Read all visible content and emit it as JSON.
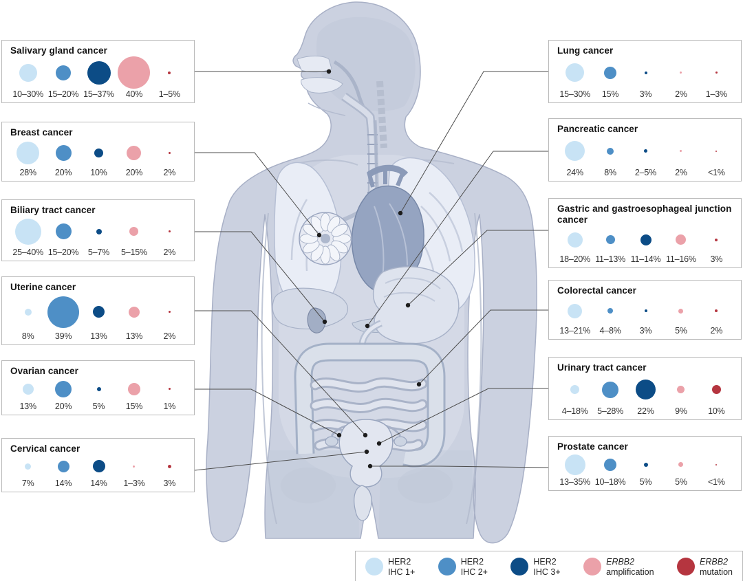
{
  "panels": [
    {
      "id": "salivary-gland-cancer",
      "side": "left",
      "title": "Salivary gland cancer",
      "bubbles": [
        {
          "label": "10–30%",
          "category": "HER2 IHC 1+",
          "color_key": "ihc1",
          "size": 26
        },
        {
          "label": "15–20%",
          "category": "HER2 IHC 2+",
          "color_key": "ihc2",
          "size": 22
        },
        {
          "label": "15–37%",
          "category": "HER2 IHC 3+",
          "color_key": "ihc3",
          "size": 34
        },
        {
          "label": "40%",
          "category": "ERBB2 amplification",
          "color_key": "amp",
          "size": 47
        },
        {
          "label": "1–5%",
          "category": "ERBB2 mutation",
          "color_key": "mut",
          "size": 4
        }
      ]
    },
    {
      "id": "breast-cancer",
      "side": "left",
      "title": "Breast cancer",
      "bubbles": [
        {
          "label": "28%",
          "category": "HER2 IHC 1+",
          "color_key": "ihc1",
          "size": 33
        },
        {
          "label": "20%",
          "category": "HER2 IHC 2+",
          "color_key": "ihc2",
          "size": 23
        },
        {
          "label": "10%",
          "category": "HER2 IHC 3+",
          "color_key": "ihc3",
          "size": 13
        },
        {
          "label": "20%",
          "category": "ERBB2 amplification",
          "color_key": "amp",
          "size": 21
        },
        {
          "label": "2%",
          "category": "ERBB2 mutation",
          "color_key": "mut",
          "size": 3
        }
      ]
    },
    {
      "id": "biliary-tract-cancer",
      "side": "left",
      "title": "Biliary tract cancer",
      "bubbles": [
        {
          "label": "25–40%",
          "category": "HER2 IHC 1+",
          "color_key": "ihc1",
          "size": 38
        },
        {
          "label": "15–20%",
          "category": "HER2 IHC 2+",
          "color_key": "ihc2",
          "size": 23
        },
        {
          "label": "5–7%",
          "category": "HER2 IHC 3+",
          "color_key": "ihc3",
          "size": 8
        },
        {
          "label": "5–15%",
          "category": "ERBB2 amplification",
          "color_key": "amp",
          "size": 13
        },
        {
          "label": "2%",
          "category": "ERBB2 mutation",
          "color_key": "mut",
          "size": 3
        }
      ]
    },
    {
      "id": "uterine-cancer",
      "side": "left",
      "title": "Uterine cancer",
      "bubbles": [
        {
          "label": "8%",
          "category": "HER2 IHC 1+",
          "color_key": "ihc1",
          "size": 10
        },
        {
          "label": "39%",
          "category": "HER2 IHC 2+",
          "color_key": "ihc2",
          "size": 46
        },
        {
          "label": "13%",
          "category": "HER2 IHC 3+",
          "color_key": "ihc3",
          "size": 17
        },
        {
          "label": "13%",
          "category": "ERBB2 amplification",
          "color_key": "amp",
          "size": 16
        },
        {
          "label": "2%",
          "category": "ERBB2 mutation",
          "color_key": "mut",
          "size": 3
        }
      ]
    },
    {
      "id": "ovarian-cancer",
      "side": "left",
      "title": "Ovarian cancer",
      "bubbles": [
        {
          "label": "13%",
          "category": "HER2 IHC 1+",
          "color_key": "ihc1",
          "size": 16
        },
        {
          "label": "20%",
          "category": "HER2 IHC 2+",
          "color_key": "ihc2",
          "size": 24
        },
        {
          "label": "5%",
          "category": "HER2 IHC 3+",
          "color_key": "ihc3",
          "size": 6
        },
        {
          "label": "15%",
          "category": "ERBB2 amplification",
          "color_key": "amp",
          "size": 18
        },
        {
          "label": "1%",
          "category": "ERBB2 mutation",
          "color_key": "mut",
          "size": 3
        }
      ]
    },
    {
      "id": "cervical-cancer",
      "side": "left",
      "title": "Cervical cancer",
      "bubbles": [
        {
          "label": "7%",
          "category": "HER2 IHC 1+",
          "color_key": "ihc1",
          "size": 9
        },
        {
          "label": "14%",
          "category": "HER2 IHC 2+",
          "color_key": "ihc2",
          "size": 17
        },
        {
          "label": "14%",
          "category": "HER2 IHC 3+",
          "color_key": "ihc3",
          "size": 18
        },
        {
          "label": "1–3%",
          "category": "ERBB2 amplification",
          "color_key": "amp",
          "size": 3
        },
        {
          "label": "3%",
          "category": "ERBB2 mutation",
          "color_key": "mut",
          "size": 5
        }
      ]
    },
    {
      "id": "lung-cancer",
      "side": "right",
      "title": "Lung cancer",
      "bubbles": [
        {
          "label": "15–30%",
          "category": "HER2 IHC 1+",
          "color_key": "ihc1",
          "size": 27
        },
        {
          "label": "15%",
          "category": "HER2 IHC 2+",
          "color_key": "ihc2",
          "size": 18
        },
        {
          "label": "3%",
          "category": "HER2 IHC 3+",
          "color_key": "ihc3",
          "size": 4
        },
        {
          "label": "2%",
          "category": "ERBB2 amplification",
          "color_key": "amp",
          "size": 3
        },
        {
          "label": "1–3%",
          "category": "ERBB2 mutation",
          "color_key": "mut",
          "size": 3
        }
      ]
    },
    {
      "id": "pancreatic-cancer",
      "side": "right",
      "title": "Pancreatic cancer",
      "bubbles": [
        {
          "label": "24%",
          "category": "HER2 IHC 1+",
          "color_key": "ihc1",
          "size": 29
        },
        {
          "label": "8%",
          "category": "HER2 IHC 2+",
          "color_key": "ihc2",
          "size": 10
        },
        {
          "label": "2–5%",
          "category": "HER2 IHC 3+",
          "color_key": "ihc3",
          "size": 5
        },
        {
          "label": "2%",
          "category": "ERBB2 amplification",
          "color_key": "amp",
          "size": 3
        },
        {
          "label": "<1%",
          "category": "ERBB2 mutation",
          "color_key": "mut",
          "size": 2
        }
      ]
    },
    {
      "id": "gastric-gej-cancer",
      "side": "right",
      "title": "Gastric and gastroesophageal junction cancer",
      "bubbles": [
        {
          "label": "18–20%",
          "category": "HER2 IHC 1+",
          "color_key": "ihc1",
          "size": 22
        },
        {
          "label": "11–13%",
          "category": "HER2 IHC 2+",
          "color_key": "ihc2",
          "size": 13
        },
        {
          "label": "11–14%",
          "category": "HER2 IHC 3+",
          "color_key": "ihc3",
          "size": 16
        },
        {
          "label": "11–16%",
          "category": "ERBB2 amplification",
          "color_key": "amp",
          "size": 15
        },
        {
          "label": "3%",
          "category": "ERBB2 mutation",
          "color_key": "mut",
          "size": 4
        }
      ]
    },
    {
      "id": "colorectal-cancer",
      "side": "right",
      "title": "Colorectal cancer",
      "bubbles": [
        {
          "label": "13–21%",
          "category": "HER2 IHC 1+",
          "color_key": "ihc1",
          "size": 21
        },
        {
          "label": "4–8%",
          "category": "HER2 IHC 2+",
          "color_key": "ihc2",
          "size": 8
        },
        {
          "label": "3%",
          "category": "HER2 IHC 3+",
          "color_key": "ihc3",
          "size": 4
        },
        {
          "label": "5%",
          "category": "ERBB2 amplification",
          "color_key": "amp",
          "size": 7
        },
        {
          "label": "2%",
          "category": "ERBB2 mutation",
          "color_key": "mut",
          "size": 4
        }
      ]
    },
    {
      "id": "urinary-tract-cancer",
      "side": "right",
      "title": "Urinary tract cancer",
      "bubbles": [
        {
          "label": "4–18%",
          "category": "HER2 IHC 1+",
          "color_key": "ihc1",
          "size": 13
        },
        {
          "label": "5–28%",
          "category": "HER2 IHC 2+",
          "color_key": "ihc2",
          "size": 24
        },
        {
          "label": "22%",
          "category": "HER2 IHC 3+",
          "color_key": "ihc3",
          "size": 29
        },
        {
          "label": "9%",
          "category": "ERBB2 amplification",
          "color_key": "amp",
          "size": 11
        },
        {
          "label": "10%",
          "category": "ERBB2 mutation",
          "color_key": "mut",
          "size": 13
        }
      ]
    },
    {
      "id": "prostate-cancer",
      "side": "right",
      "title": "Prostate cancer",
      "bubbles": [
        {
          "label": "13–35%",
          "category": "HER2 IHC 1+",
          "color_key": "ihc1",
          "size": 30
        },
        {
          "label": "10–18%",
          "category": "HER2 IHC 2+",
          "color_key": "ihc2",
          "size": 18
        },
        {
          "label": "5%",
          "category": "HER2 IHC 3+",
          "color_key": "ihc3",
          "size": 6
        },
        {
          "label": "5%",
          "category": "ERBB2 amplification",
          "color_key": "amp",
          "size": 7
        },
        {
          "label": "<1%",
          "category": "ERBB2 mutation",
          "color_key": "mut",
          "size": 2
        }
      ]
    }
  ],
  "legend": {
    "items": [
      {
        "line1": "HER2",
        "line2": "IHC 1+",
        "color_key": "ihc1",
        "italic_line1": false
      },
      {
        "line1": "HER2",
        "line2": "IHC 2+",
        "color_key": "ihc2",
        "italic_line1": false
      },
      {
        "line1": "HER2",
        "line2": "IHC 3+",
        "color_key": "ihc3",
        "italic_line1": false
      },
      {
        "line1": "ERBB2",
        "line2": "amplification",
        "color_key": "amp",
        "italic_line1": true
      },
      {
        "line1": "ERBB2",
        "line2": "mutation",
        "color_key": "mut",
        "italic_line1": true
      }
    ]
  },
  "colors": {
    "ihc1": "#c8e3f5",
    "ihc2": "#4e8fc6",
    "ihc3": "#0c4c86",
    "amp": "#eba1a9",
    "mut": "#b5353f"
  }
}
